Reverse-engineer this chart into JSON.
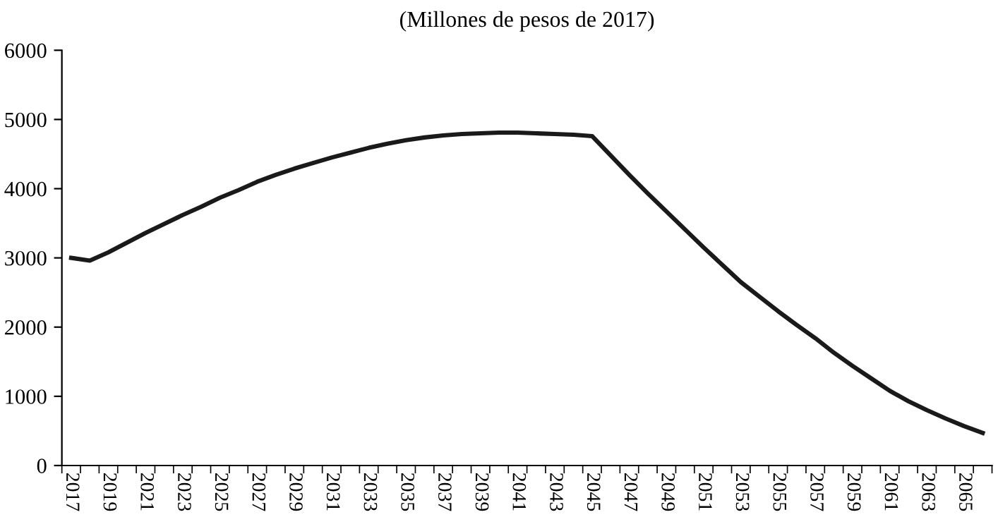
{
  "chart_data": {
    "type": "line",
    "title": "(Millones de pesos de 2017)",
    "categories": [
      "2017",
      null,
      "2019",
      null,
      "2021",
      null,
      "2023",
      null,
      "2025",
      null,
      "2027",
      null,
      "2029",
      null,
      "2031",
      null,
      "2033",
      null,
      "2035",
      null,
      "2037",
      null,
      "2039",
      null,
      "2041",
      null,
      "2043",
      null,
      "2045",
      null,
      "2047",
      null,
      "2049",
      null,
      "2051",
      null,
      "2053",
      null,
      "2055",
      null,
      "2057",
      null,
      "2059",
      null,
      "2061",
      null,
      "2063",
      null,
      "2065",
      null
    ],
    "series": [
      {
        "color": "#1a1a1a",
        "values": [
          3000,
          2960,
          3080,
          3220,
          3360,
          3490,
          3620,
          3740,
          3870,
          3980,
          4100,
          4200,
          4290,
          4370,
          4450,
          4520,
          4590,
          4650,
          4700,
          4740,
          4770,
          4790,
          4800,
          4810,
          4810,
          4800,
          4790,
          4780,
          4760,
          4480,
          4200,
          3930,
          3670,
          3410,
          3150,
          2900,
          2650,
          2440,
          2230,
          2030,
          1840,
          1630,
          1440,
          1260,
          1080,
          930,
          800,
          680,
          570,
          470
        ]
      }
    ],
    "ylim": [
      0,
      6000
    ],
    "yticks": [
      0,
      1000,
      2000,
      3000,
      4000,
      5000,
      6000
    ],
    "grid": false,
    "marker": "none",
    "line_style": "solid"
  }
}
